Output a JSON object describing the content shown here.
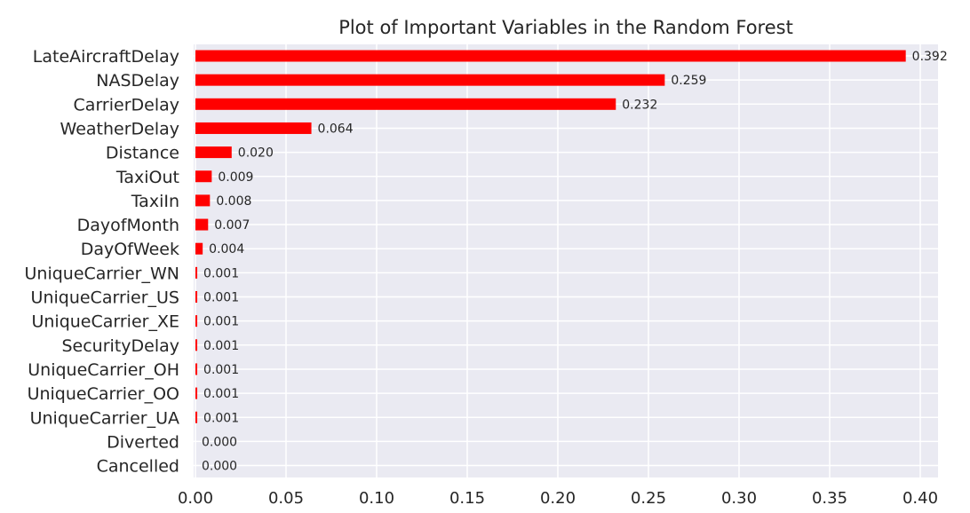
{
  "chart_data": {
    "type": "bar",
    "orientation": "horizontal",
    "title": "Plot of Important Variables in the Random Forest",
    "xlabel": "",
    "ylabel": "",
    "xlim": [
      0,
      0.41
    ],
    "xticks": [
      0.0,
      0.05,
      0.1,
      0.15,
      0.2,
      0.25,
      0.3,
      0.35,
      0.4
    ],
    "xtick_labels": [
      "0.00",
      "0.05",
      "0.10",
      "0.15",
      "0.20",
      "0.25",
      "0.30",
      "0.35",
      "0.40"
    ],
    "grid": true,
    "bar_color": "#ff0000",
    "background_color": "#eaeaf2",
    "categories": [
      "LateAircraftDelay",
      "NASDelay",
      "CarrierDelay",
      "WeatherDelay",
      "Distance",
      "TaxiOut",
      "TaxiIn",
      "DayofMonth",
      "DayOfWeek",
      "UniqueCarrier_WN",
      "UniqueCarrier_US",
      "UniqueCarrier_XE",
      "SecurityDelay",
      "UniqueCarrier_OH",
      "UniqueCarrier_OO",
      "UniqueCarrier_UA",
      "Diverted",
      "Cancelled"
    ],
    "values": [
      0.392,
      0.259,
      0.232,
      0.064,
      0.02,
      0.009,
      0.008,
      0.007,
      0.004,
      0.001,
      0.001,
      0.001,
      0.001,
      0.001,
      0.001,
      0.001,
      0.0,
      0.0
    ],
    "value_labels": [
      "0.392",
      "0.259",
      "0.232",
      "0.064",
      "0.020",
      "0.009",
      "0.008",
      "0.007",
      "0.004",
      "0.001",
      "0.001",
      "0.001",
      "0.001",
      "0.001",
      "0.001",
      "0.001",
      "0.000",
      "0.000"
    ]
  }
}
